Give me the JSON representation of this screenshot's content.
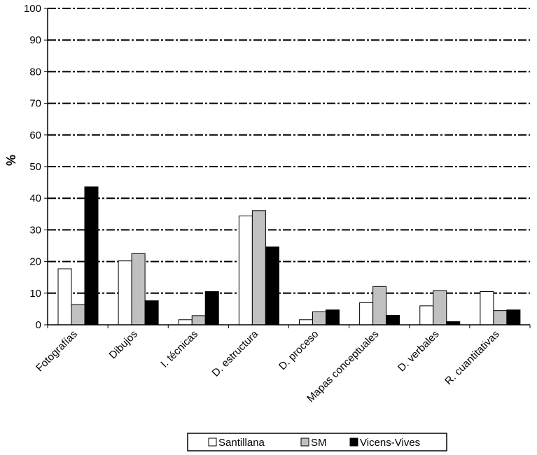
{
  "chart_data": {
    "type": "bar",
    "ylabel": "%",
    "ylim": [
      0,
      100
    ],
    "yticks": [
      0,
      10,
      20,
      30,
      40,
      50,
      60,
      70,
      80,
      90,
      100
    ],
    "grid": true,
    "legend_position": "bottom",
    "categories": [
      "Fotografías",
      "Dibujos",
      "I. técnicas",
      "D. estructura",
      "D. proceso",
      "Mapas conceptuales",
      "D. verbales",
      "R. cuantitativas"
    ],
    "series": [
      {
        "name": "Santillana",
        "color": "#ffffff",
        "values": [
          17.7,
          20.2,
          1.6,
          34.4,
          1.6,
          7.0,
          6.0,
          10.5
        ]
      },
      {
        "name": "SM",
        "color": "#c0c0c0",
        "values": [
          6.4,
          22.5,
          2.9,
          36.1,
          4.1,
          12.1,
          10.8,
          4.5
        ]
      },
      {
        "name": "Vicens-Vives",
        "color": "#000000",
        "values": [
          43.6,
          7.6,
          10.5,
          24.6,
          4.7,
          3.0,
          1.0,
          4.7
        ]
      }
    ]
  }
}
